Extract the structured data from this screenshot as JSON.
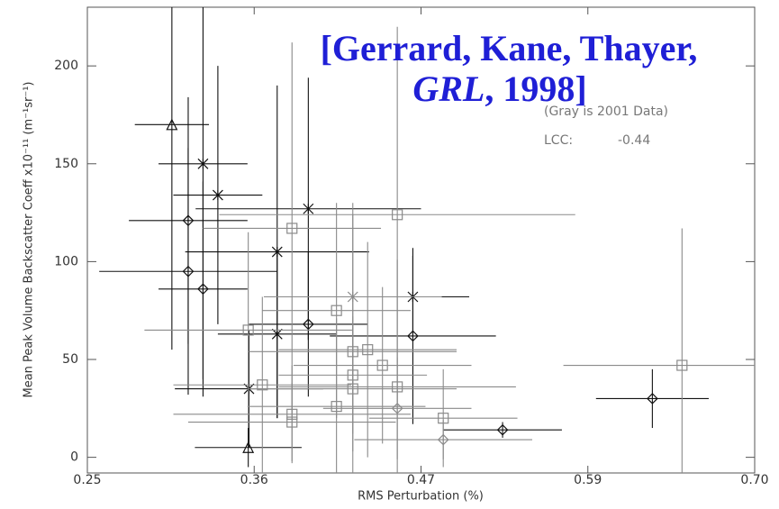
{
  "chart_data": {
    "type": "scatter",
    "x_label": "RMS Perturbation (%)",
    "y_label": "Mean Peak Volume Backscatter Coeff x10⁻¹¹  (m⁻¹sr⁻¹)",
    "annotations": {
      "citation_line1": "[Gerrard, Kane, Thayer,",
      "citation_journal": "GRL",
      "citation_year": ", 1998]",
      "gray_note": "(Gray is 2001 Data)",
      "lcc_label": "LCC:",
      "lcc_value": "-0.44"
    },
    "xlim": [
      0.25,
      0.7
    ],
    "ylim": [
      -8,
      230
    ],
    "xticks": [
      0.25,
      {
        "value": 0.3625,
        "label": "0.36"
      },
      {
        "value": 0.475,
        "label": "0.47"
      },
      {
        "value": 0.5875,
        "label": "0.59"
      },
      {
        "value": 0.7,
        "label": "0.70"
      }
    ],
    "yticks": [
      0,
      50,
      100,
      150,
      200
    ],
    "series": [
      {
        "color": "#111111",
        "markers": [
          "triangle",
          "triangle",
          "x",
          "x",
          "x",
          "x",
          "x",
          "x",
          "x",
          "diamond",
          "diamond",
          "diamond",
          "diamond",
          "diamond",
          "diamond",
          "diamond"
        ],
        "x": [
          0.307,
          0.3585,
          0.328,
          0.338,
          0.378,
          0.399,
          0.378,
          0.359,
          0.4695,
          0.318,
          0.318,
          0.328,
          0.399,
          0.4695,
          0.631,
          0.53
        ],
        "values": [
          170,
          5,
          150,
          134,
          105,
          127,
          63,
          35,
          82,
          121,
          95,
          86,
          68,
          62,
          30,
          14
        ],
        "xerr": [
          0.025,
          0.036,
          0.03,
          0.03,
          0.062,
          0.076,
          0.04,
          0.05,
          0.038,
          0.04,
          0.06,
          0.03,
          0.04,
          0.056,
          0.038,
          0.04
        ],
        "yerr": [
          115,
          10,
          110,
          66,
          85,
          67,
          43,
          30,
          21,
          63,
          63,
          55,
          37,
          45,
          15,
          4
        ]
      },
      {
        "color": "#8a8a8a",
        "markers": [
          "square",
          "square",
          "square",
          "square",
          "square",
          "square",
          "square",
          "square",
          "square",
          "square",
          "square",
          "square",
          "square",
          "square",
          "square",
          "square",
          "x",
          "diamond",
          "diamond"
        ],
        "x": [
          0.459,
          0.388,
          0.418,
          0.429,
          0.439,
          0.429,
          0.429,
          0.449,
          0.459,
          0.3585,
          0.368,
          0.388,
          0.388,
          0.418,
          0.49,
          0.651,
          0.429,
          0.459,
          0.49
        ],
        "values": [
          124,
          117,
          75,
          54,
          55,
          42,
          35,
          47,
          36,
          65,
          37,
          22,
          18,
          26,
          20,
          47,
          82,
          25,
          9
        ],
        "xerr": [
          0.12,
          0.06,
          0.05,
          0.07,
          0.06,
          0.05,
          0.07,
          0.06,
          0.08,
          0.07,
          0.06,
          0.08,
          0.07,
          0.06,
          0.05,
          0.08,
          0.06,
          0.05,
          0.06
        ],
        "yerr": [
          96,
          95,
          55,
          70,
          55,
          30,
          32,
          40,
          65,
          50,
          45,
          25,
          20,
          45,
          25,
          70,
          48,
          26,
          10
        ]
      }
    ]
  }
}
